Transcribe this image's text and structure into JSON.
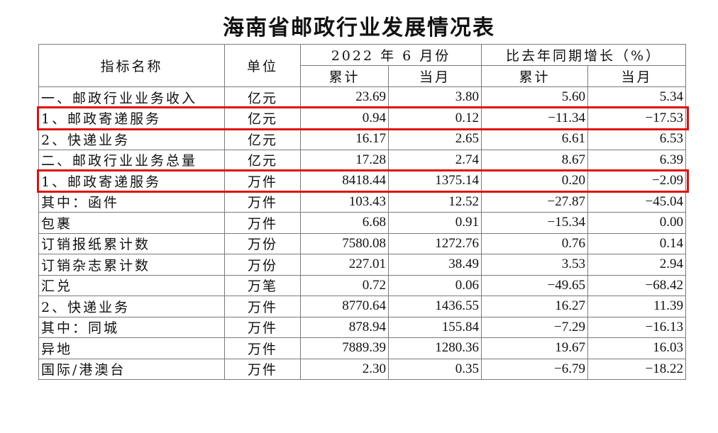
{
  "title": "海南省邮政行业发展情况表",
  "header": {
    "indicator": "指标名称",
    "unit": "单位",
    "period": "2022 年 6 月份",
    "growth": "比去年同期增长（%）",
    "cumulative": "累计",
    "month": "当月",
    "cumulative2": "累计",
    "month2": "当月"
  },
  "rows": [
    {
      "name": "一、邮政行业业务收入",
      "unit": "亿元",
      "cum": "23.69",
      "mon": "3.80",
      "g_cum": "5.60",
      "g_mon": "5.34",
      "level": 0
    },
    {
      "name": "1、邮政寄递服务",
      "unit": "亿元",
      "cum": "0.94",
      "mon": "0.12",
      "g_cum": "−11.34",
      "g_mon": "−17.53",
      "level": 1
    },
    {
      "name": "2、快递业务",
      "unit": "亿元",
      "cum": "16.17",
      "mon": "2.65",
      "g_cum": "6.61",
      "g_mon": "6.53",
      "level": 1
    },
    {
      "name": "二、邮政行业业务总量",
      "unit": "亿元",
      "cum": "17.28",
      "mon": "2.74",
      "g_cum": "8.67",
      "g_mon": "6.39",
      "level": 0
    },
    {
      "name": "1、邮政寄递服务",
      "unit": "万件",
      "cum": "8418.44",
      "mon": "1375.14",
      "g_cum": "0.20",
      "g_mon": "−2.09",
      "level": 1
    },
    {
      "name": "其中：函件",
      "unit": "万件",
      "cum": "103.43",
      "mon": "12.52",
      "g_cum": "−27.87",
      "g_mon": "−45.04",
      "level": 1
    },
    {
      "name": "包裹",
      "unit": "万件",
      "cum": "6.68",
      "mon": "0.91",
      "g_cum": "−15.34",
      "g_mon": "0.00",
      "level": 2
    },
    {
      "name": "订销报纸累计数",
      "unit": "万份",
      "cum": "7580.08",
      "mon": "1272.76",
      "g_cum": "0.76",
      "g_mon": "0.14",
      "level": 2
    },
    {
      "name": "订销杂志累计数",
      "unit": "万份",
      "cum": "227.01",
      "mon": "38.49",
      "g_cum": "3.53",
      "g_mon": "2.94",
      "level": 2
    },
    {
      "name": "汇兑",
      "unit": "万笔",
      "cum": "0.72",
      "mon": "0.06",
      "g_cum": "−49.65",
      "g_mon": "−68.42",
      "level": 2
    },
    {
      "name": "2、快递业务",
      "unit": "万件",
      "cum": "8770.64",
      "mon": "1436.55",
      "g_cum": "16.27",
      "g_mon": "11.39",
      "level": 1
    },
    {
      "name": "其中：同城",
      "unit": "万件",
      "cum": "878.94",
      "mon": "155.84",
      "g_cum": "−7.29",
      "g_mon": "−16.13",
      "level": 1
    },
    {
      "name": "异地",
      "unit": "万件",
      "cum": "7889.39",
      "mon": "1280.36",
      "g_cum": "19.67",
      "g_mon": "16.03",
      "level": 2
    },
    {
      "name": "国际/港澳台",
      "unit": "万件",
      "cum": "2.30",
      "mon": "0.35",
      "g_cum": "−6.79",
      "g_mon": "−18.22",
      "level": 2
    }
  ],
  "highlight_color": "#e01010"
}
